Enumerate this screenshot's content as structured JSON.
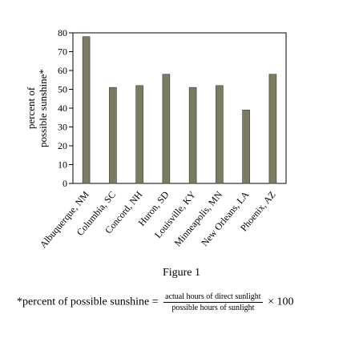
{
  "chart_data": {
    "type": "bar",
    "categories": [
      "Albuquerque, NM",
      "Columbia, SC",
      "Concord, NH",
      "Huron, SD",
      "Louisville, KY",
      "Minneapolis, MN",
      "New Orleans, LA",
      "Phoenix, AZ"
    ],
    "values": [
      78,
      51,
      52,
      58,
      51,
      52,
      39,
      58
    ],
    "ylabel_line1": "percent of",
    "ylabel_line2": "possible sunshine*",
    "ylim": [
      0,
      80
    ],
    "yticks": [
      0,
      10,
      20,
      30,
      40,
      50,
      60,
      70,
      80
    ],
    "grid": false,
    "legend": "none",
    "bar_color": "#7b7a62"
  },
  "caption": "Figure 1",
  "footnote": {
    "lhs": "*percent of possible sunshine =",
    "numerator": "actual hours of direct sunlight",
    "denominator": "possible hours of sunlight",
    "rhs": "× 100"
  }
}
